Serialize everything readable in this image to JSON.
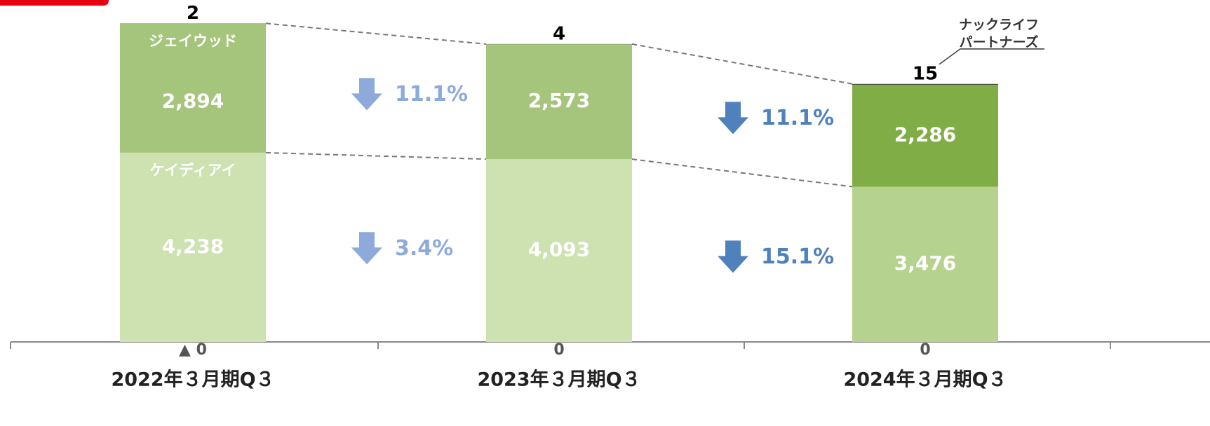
{
  "chart_data": {
    "type": "stacked-bar",
    "categories": [
      "2022年３月期Q３",
      "2023年３月期Q３",
      "2024年３月期Q３"
    ],
    "ylim": [
      0,
      7500
    ],
    "series": [
      {
        "name": "ケイディアイ",
        "colors": [
          "#cde1b1",
          "#cde1b1",
          "#b5d38e"
        ],
        "values": [
          4238,
          4093,
          3476
        ],
        "value_labels": [
          "4,238",
          "4,093",
          "3,476"
        ]
      },
      {
        "name": "ジェイウッド",
        "colors": [
          "#a5c57d",
          "#a5c57d",
          "#80ad46"
        ],
        "values": [
          2894,
          2573,
          2286
        ],
        "value_labels": [
          "2,894",
          "2,573",
          "2,286"
        ]
      },
      {
        "name": [
          "ナックライフ",
          "パートナーズ"
        ],
        "colors": [
          "#222222",
          "#222222",
          "#222222"
        ],
        "values": [
          2,
          4,
          15
        ]
      },
      {
        "values": [
          0,
          0,
          0
        ],
        "value_labels": [
          "▲ 0",
          "0",
          "0"
        ]
      }
    ],
    "changes": [
      [
        "3.4%",
        "11.1%"
      ],
      [
        "15.1%",
        "11.1%"
      ]
    ],
    "change_colors": [
      "#8eaadb",
      "#4f81bd"
    ]
  }
}
